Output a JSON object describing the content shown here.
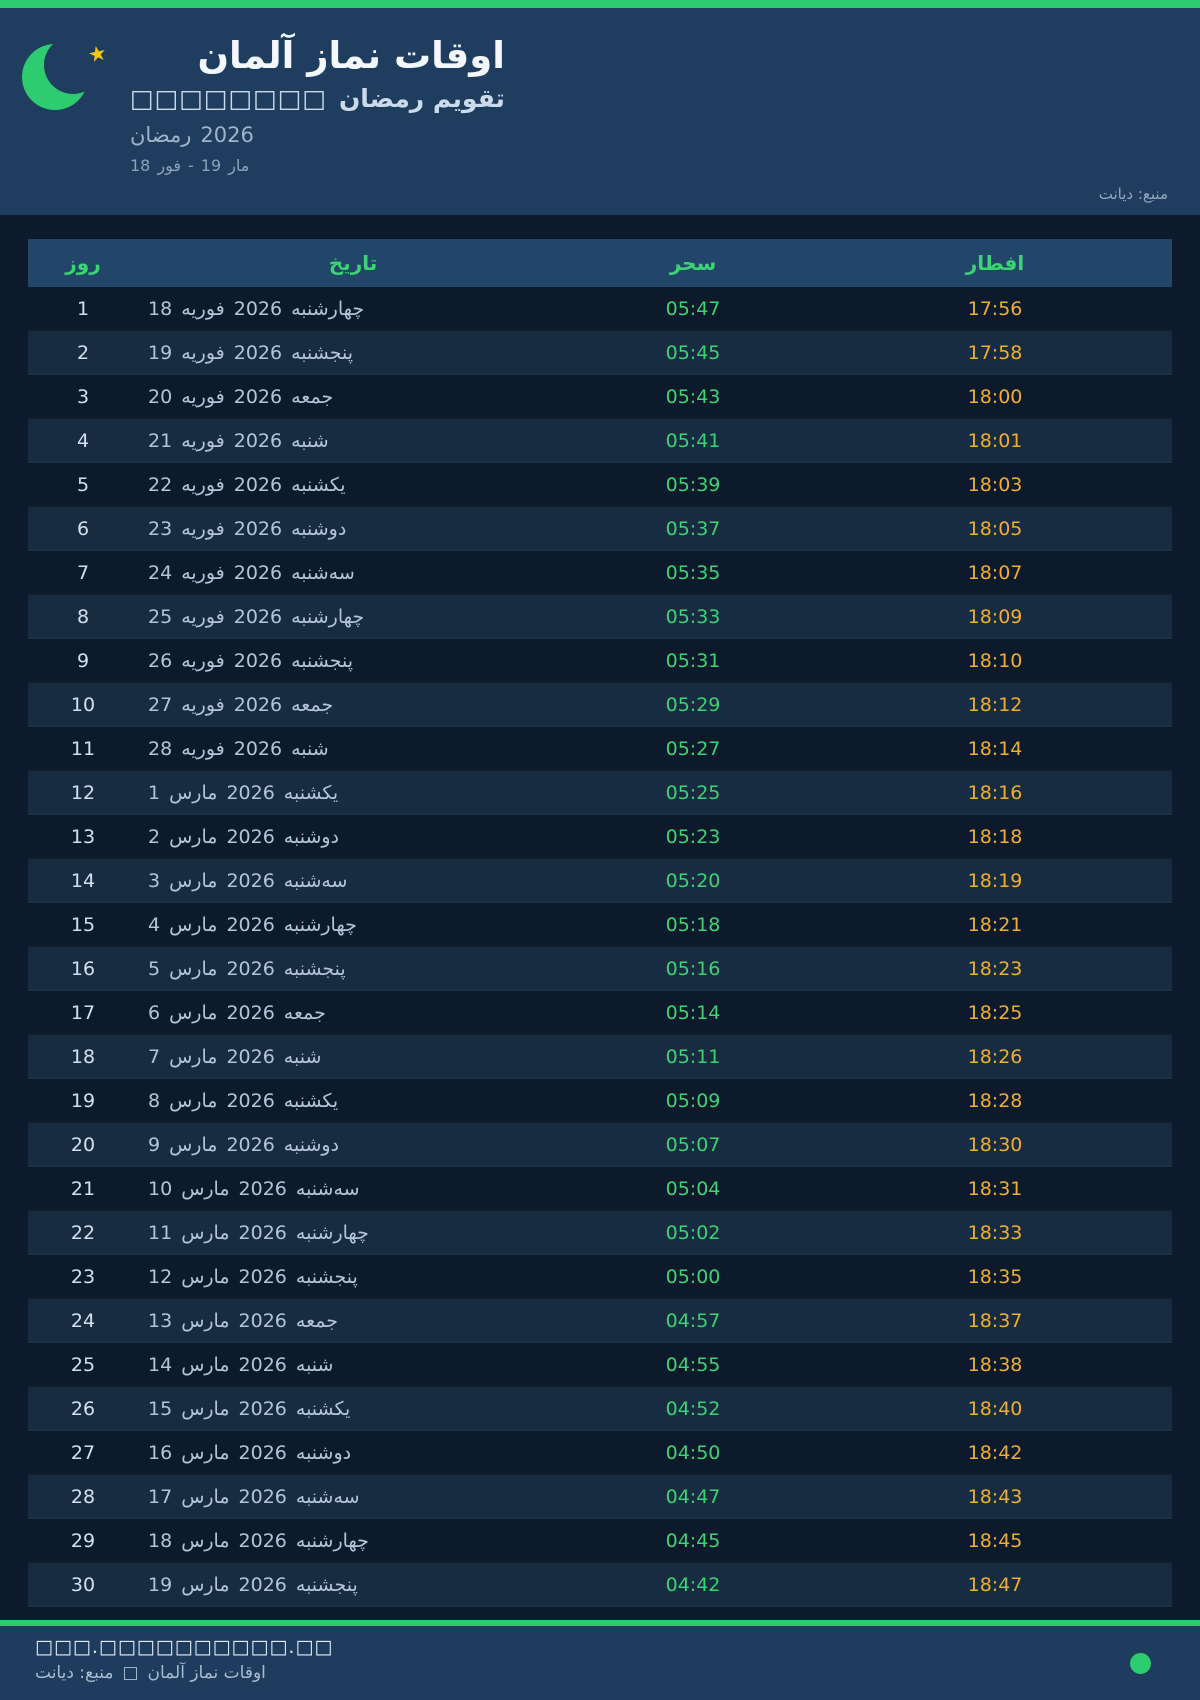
{
  "header": {
    "title": "اوقات نماز آلمان",
    "subtitle_symbols": "□□□□□□□□",
    "subtitle": "تقویم رمضان",
    "season_name": "رمضان",
    "season_year": "2026",
    "date_range": {
      "start_day": "18",
      "start_month": "فور",
      "separator": "-",
      "end_day": "19",
      "end_month": "مار"
    },
    "source_label": "منبع: دیانت"
  },
  "table": {
    "headers": {
      "day": "روز",
      "date": "تاریخ",
      "suhoor": "سحر",
      "iftar": "افطار"
    },
    "rows": [
      {
        "day": "1",
        "date_day": "18",
        "month": "فوریه",
        "year": "2026",
        "weekday": "چهارشنبه",
        "suhoor": "05:47",
        "iftar": "17:56"
      },
      {
        "day": "2",
        "date_day": "19",
        "month": "فوریه",
        "year": "2026",
        "weekday": "پنجشنبه",
        "suhoor": "05:45",
        "iftar": "17:58"
      },
      {
        "day": "3",
        "date_day": "20",
        "month": "فوریه",
        "year": "2026",
        "weekday": "جمعه",
        "suhoor": "05:43",
        "iftar": "18:00"
      },
      {
        "day": "4",
        "date_day": "21",
        "month": "فوریه",
        "year": "2026",
        "weekday": "شنبه",
        "suhoor": "05:41",
        "iftar": "18:01"
      },
      {
        "day": "5",
        "date_day": "22",
        "month": "فوریه",
        "year": "2026",
        "weekday": "یکشنبه",
        "suhoor": "05:39",
        "iftar": "18:03"
      },
      {
        "day": "6",
        "date_day": "23",
        "month": "فوریه",
        "year": "2026",
        "weekday": "دوشنبه",
        "suhoor": "05:37",
        "iftar": "18:05"
      },
      {
        "day": "7",
        "date_day": "24",
        "month": "فوریه",
        "year": "2026",
        "weekday": "سه‌شنبه",
        "suhoor": "05:35",
        "iftar": "18:07"
      },
      {
        "day": "8",
        "date_day": "25",
        "month": "فوریه",
        "year": "2026",
        "weekday": "چهارشنبه",
        "suhoor": "05:33",
        "iftar": "18:09"
      },
      {
        "day": "9",
        "date_day": "26",
        "month": "فوریه",
        "year": "2026",
        "weekday": "پنجشنبه",
        "suhoor": "05:31",
        "iftar": "18:10"
      },
      {
        "day": "10",
        "date_day": "27",
        "month": "فوریه",
        "year": "2026",
        "weekday": "جمعه",
        "suhoor": "05:29",
        "iftar": "18:12"
      },
      {
        "day": "11",
        "date_day": "28",
        "month": "فوریه",
        "year": "2026",
        "weekday": "شنبه",
        "suhoor": "05:27",
        "iftar": "18:14"
      },
      {
        "day": "12",
        "date_day": "1",
        "month": "مارس",
        "year": "2026",
        "weekday": "یکشنبه",
        "suhoor": "05:25",
        "iftar": "18:16"
      },
      {
        "day": "13",
        "date_day": "2",
        "month": "مارس",
        "year": "2026",
        "weekday": "دوشنبه",
        "suhoor": "05:23",
        "iftar": "18:18"
      },
      {
        "day": "14",
        "date_day": "3",
        "month": "مارس",
        "year": "2026",
        "weekday": "سه‌شنبه",
        "suhoor": "05:20",
        "iftar": "18:19"
      },
      {
        "day": "15",
        "date_day": "4",
        "month": "مارس",
        "year": "2026",
        "weekday": "چهارشنبه",
        "suhoor": "05:18",
        "iftar": "18:21"
      },
      {
        "day": "16",
        "date_day": "5",
        "month": "مارس",
        "year": "2026",
        "weekday": "پنجشنبه",
        "suhoor": "05:16",
        "iftar": "18:23"
      },
      {
        "day": "17",
        "date_day": "6",
        "month": "مارس",
        "year": "2026",
        "weekday": "جمعه",
        "suhoor": "05:14",
        "iftar": "18:25"
      },
      {
        "day": "18",
        "date_day": "7",
        "month": "مارس",
        "year": "2026",
        "weekday": "شنبه",
        "suhoor": "05:11",
        "iftar": "18:26"
      },
      {
        "day": "19",
        "date_day": "8",
        "month": "مارس",
        "year": "2026",
        "weekday": "یکشنبه",
        "suhoor": "05:09",
        "iftar": "18:28"
      },
      {
        "day": "20",
        "date_day": "9",
        "month": "مارس",
        "year": "2026",
        "weekday": "دوشنبه",
        "suhoor": "05:07",
        "iftar": "18:30"
      },
      {
        "day": "21",
        "date_day": "10",
        "month": "مارس",
        "year": "2026",
        "weekday": "سه‌شنبه",
        "suhoor": "05:04",
        "iftar": "18:31"
      },
      {
        "day": "22",
        "date_day": "11",
        "month": "مارس",
        "year": "2026",
        "weekday": "چهارشنبه",
        "suhoor": "05:02",
        "iftar": "18:33"
      },
      {
        "day": "23",
        "date_day": "12",
        "month": "مارس",
        "year": "2026",
        "weekday": "پنجشنبه",
        "suhoor": "05:00",
        "iftar": "18:35"
      },
      {
        "day": "24",
        "date_day": "13",
        "month": "مارس",
        "year": "2026",
        "weekday": "جمعه",
        "suhoor": "04:57",
        "iftar": "18:37"
      },
      {
        "day": "25",
        "date_day": "14",
        "month": "مارس",
        "year": "2026",
        "weekday": "شنبه",
        "suhoor": "04:55",
        "iftar": "18:38"
      },
      {
        "day": "26",
        "date_day": "15",
        "month": "مارس",
        "year": "2026",
        "weekday": "یکشنبه",
        "suhoor": "04:52",
        "iftar": "18:40"
      },
      {
        "day": "27",
        "date_day": "16",
        "month": "مارس",
        "year": "2026",
        "weekday": "دوشنبه",
        "suhoor": "04:50",
        "iftar": "18:42"
      },
      {
        "day": "28",
        "date_day": "17",
        "month": "مارس",
        "year": "2026",
        "weekday": "سه‌شنبه",
        "suhoor": "04:47",
        "iftar": "18:43"
      },
      {
        "day": "29",
        "date_day": "18",
        "month": "مارس",
        "year": "2026",
        "weekday": "چهارشنبه",
        "suhoor": "04:45",
        "iftar": "18:45"
      },
      {
        "day": "30",
        "date_day": "19",
        "month": "مارس",
        "year": "2026",
        "weekday": "پنجشنبه",
        "suhoor": "04:42",
        "iftar": "18:47"
      }
    ]
  },
  "footer": {
    "website": "□□□.□□□□□□□□□□.□□",
    "app_title": "اوقات نماز آلمان",
    "separator_symbol": "□",
    "source_label": "منبع: دیانت"
  },
  "colors": {
    "accent_green": "#2ecc71",
    "suhoor_green": "#3bd472",
    "iftar_amber": "#f2ae2d",
    "star_gold": "#f5c51a",
    "hero_bg": "#1f3d5e",
    "page_bg": "#0c1a2b",
    "table_header_bg": "#214669",
    "footer_bg": "#1e3c5e"
  }
}
